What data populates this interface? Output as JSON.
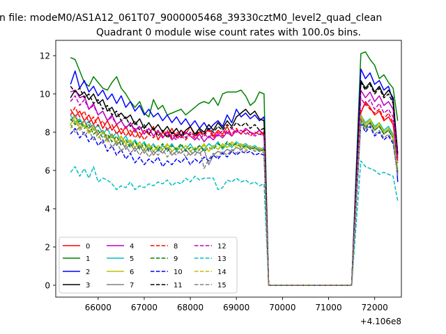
{
  "chart_data": {
    "type": "line",
    "suptitle": "n file: modeM0/AS1A12_061T07_9000005468_39330cztM0_level2_quad_clean",
    "title": "Quadrant 0 module wise count rates with 100.0s bins.",
    "xlabel": "",
    "ylabel": "",
    "x_offset_label": "+4.106e8",
    "xlim": [
      65080,
      72580
    ],
    "ylim": [
      -0.62,
      12.8
    ],
    "xticks": [
      66000,
      67000,
      68000,
      69000,
      70000,
      71000,
      72000
    ],
    "yticks": [
      0,
      2,
      4,
      6,
      8,
      10,
      12
    ],
    "grid": false,
    "legend": {
      "placement": "lower-left",
      "columns": 4
    },
    "segments": [
      [
        65400,
        69600
      ],
      [
        71700,
        72500
      ]
    ],
    "gap_start": 69700,
    "gap_end": 71500,
    "bin_size": 100,
    "series": [
      {
        "name": "0",
        "color": "#ff0000",
        "dash": "solid",
        "seg1": [
          9.2,
          8.8,
          9.1,
          8.6,
          8.9,
          8.4,
          8.8,
          8.2,
          8.6,
          8.1,
          8.4,
          7.9,
          8.3,
          7.8,
          8.2,
          7.7,
          8.1,
          7.9,
          8.3,
          7.6,
          8.0,
          7.8,
          8.2,
          7.7,
          8.1,
          7.9,
          8.3,
          7.8,
          8.0,
          7.9,
          8.2,
          7.8,
          8.1,
          7.9,
          8.3,
          7.8,
          8.1,
          7.9,
          8.2,
          8.0,
          7.9,
          8.1,
          7.8
        ],
        "seg2": [
          9.0,
          9.6,
          9.3,
          8.9,
          9.1,
          8.6,
          8.8,
          8.4,
          6.6
        ]
      },
      {
        "name": "1",
        "color": "#008000",
        "dash": "solid",
        "seg1": [
          11.9,
          11.8,
          11.2,
          10.6,
          10.4,
          10.9,
          10.6,
          10.3,
          10.2,
          10.6,
          10.9,
          10.3,
          10.0,
          9.6,
          9.3,
          9.6,
          9.0,
          8.8,
          9.7,
          9.2,
          9.4,
          8.9,
          9.0,
          9.1,
          9.2,
          8.9,
          9.1,
          9.3,
          9.5,
          9.6,
          9.5,
          9.8,
          9.4,
          10.0,
          10.1,
          10.1,
          10.1,
          10.2,
          9.9,
          9.4,
          9.6,
          10.1,
          10.0
        ],
        "seg2": [
          12.1,
          12.2,
          11.8,
          11.5,
          10.8,
          11.0,
          10.6,
          10.3,
          8.6
        ]
      },
      {
        "name": "2",
        "color": "#0000ff",
        "dash": "solid",
        "seg1": [
          10.5,
          11.2,
          10.3,
          10.7,
          10.1,
          10.4,
          9.9,
          10.2,
          9.7,
          10.0,
          9.5,
          9.9,
          9.3,
          9.6,
          9.1,
          9.4,
          8.9,
          9.2,
          8.8,
          9.0,
          8.6,
          8.9,
          8.5,
          8.8,
          8.4,
          8.7,
          8.3,
          8.6,
          8.2,
          8.5,
          8.1,
          8.4,
          8.6,
          8.3,
          8.9,
          8.5,
          9.2,
          8.8,
          9.0,
          8.7,
          8.9,
          8.6,
          8.8
        ],
        "seg2": [
          11.3,
          10.8,
          11.1,
          10.5,
          10.7,
          10.2,
          10.4,
          9.6,
          5.4
        ]
      },
      {
        "name": "3",
        "color": "#000000",
        "dash": "solid",
        "seg1": [
          9.8,
          10.2,
          9.9,
          10.1,
          9.7,
          10.0,
          9.5,
          9.7,
          9.1,
          9.3,
          8.8,
          9.0,
          8.7,
          8.9,
          8.4,
          8.7,
          8.2,
          8.5,
          8.1,
          8.4,
          8.0,
          8.3,
          7.9,
          8.2,
          7.8,
          8.1,
          8.3,
          7.9,
          8.2,
          8.0,
          8.4,
          8.1,
          8.5,
          8.2,
          8.6,
          8.3,
          8.8,
          9.0,
          9.2,
          8.9,
          9.1,
          8.7,
          8.6
        ],
        "seg2": [
          10.7,
          10.3,
          10.6,
          10.1,
          10.4,
          9.9,
          10.2,
          9.8,
          6.9
        ]
      },
      {
        "name": "4",
        "color": "#bf00bf",
        "dash": "solid",
        "seg1": [
          10.1,
          10.2,
          9.8,
          9.9,
          9.2,
          9.5,
          8.9,
          9.1,
          8.6,
          8.9,
          8.4,
          8.6,
          8.2,
          8.5,
          8.1,
          8.3,
          7.9,
          8.2,
          7.8,
          8.1,
          7.7,
          8.0,
          7.6,
          7.9,
          7.7,
          8.0,
          7.8,
          7.6,
          7.9,
          7.5,
          7.8,
          7.6,
          7.9,
          7.7,
          8.0,
          7.8,
          8.1,
          7.9,
          8.2,
          8.0,
          7.9,
          8.1,
          7.9
        ],
        "seg2": [
          10.2,
          9.8,
          10.1,
          9.6,
          9.9,
          9.4,
          9.6,
          9.2,
          6.7
        ]
      },
      {
        "name": "5",
        "color": "#00bfbf",
        "dash": "solid",
        "seg1": [
          8.9,
          8.5,
          8.7,
          8.3,
          8.6,
          8.1,
          8.4,
          7.9,
          8.2,
          7.7,
          8.0,
          7.5,
          7.8,
          7.3,
          7.6,
          7.2,
          7.5,
          7.1,
          7.4,
          7.0,
          7.3,
          7.1,
          7.4,
          7.0,
          7.3,
          7.1,
          7.4,
          7.0,
          7.3,
          7.1,
          7.4,
          7.2,
          7.5,
          7.1,
          7.4,
          7.2,
          7.5,
          7.3,
          7.4,
          7.2,
          7.3,
          7.1,
          7.2
        ],
        "seg2": [
          8.9,
          8.5,
          8.7,
          8.3,
          8.5,
          8.1,
          8.3,
          7.9,
          6.1
        ]
      },
      {
        "name": "6",
        "color": "#bfbf00",
        "dash": "solid",
        "seg1": [
          8.4,
          8.8,
          8.2,
          8.6,
          8.0,
          8.3,
          7.9,
          8.1,
          7.7,
          7.9,
          7.5,
          7.8,
          7.4,
          7.6,
          7.2,
          7.5,
          7.1,
          7.4,
          7.0,
          7.3,
          7.1,
          7.4,
          7.0,
          7.2,
          7.1,
          7.3,
          7.0,
          7.2,
          7.1,
          7.4,
          7.0,
          7.3,
          7.1,
          7.4,
          7.2,
          7.5,
          7.3,
          7.4,
          7.2,
          7.3,
          7.1,
          7.2,
          7.0
        ],
        "seg2": [
          8.8,
          8.4,
          8.6,
          8.2,
          8.4,
          8.0,
          8.2,
          7.8,
          6.0
        ]
      },
      {
        "name": "7",
        "color": "#808080",
        "dash": "solid",
        "seg1": [
          8.6,
          8.9,
          8.4,
          8.6,
          8.2,
          8.4,
          7.9,
          8.1,
          7.6,
          7.9,
          7.3,
          7.6,
          7.1,
          7.4,
          7.0,
          7.3,
          6.9,
          7.2,
          6.8,
          7.1,
          6.9,
          7.2,
          6.8,
          7.0,
          6.9,
          7.1,
          6.8,
          7.0,
          6.9,
          7.1,
          6.3,
          6.8,
          7.0,
          6.9,
          7.1,
          7.0,
          7.2,
          7.1,
          7.3,
          7.1,
          7.2,
          7.0,
          7.1
        ],
        "seg2": [
          8.7,
          8.3,
          8.5,
          8.1,
          8.3,
          7.9,
          8.1,
          7.7,
          5.9
        ]
      },
      {
        "name": "8",
        "color": "#ff0000",
        "dash": "dashed",
        "seg1": [
          8.9,
          9.3,
          8.8,
          9.1,
          8.5,
          8.8,
          8.3,
          8.6,
          8.1,
          8.4,
          7.9,
          8.2,
          7.8,
          8.1,
          7.7,
          8.0,
          7.6,
          7.9,
          7.7,
          8.0,
          7.8,
          8.1,
          7.7,
          8.0,
          7.8,
          7.6,
          7.9,
          7.7,
          8.0,
          7.8,
          8.1,
          7.7,
          8.0,
          7.8,
          8.1,
          7.9,
          8.2,
          7.9,
          8.1,
          7.8,
          8.0,
          7.9,
          8.0
        ],
        "seg2": [
          9.1,
          9.5,
          9.2,
          9.0,
          9.2,
          8.7,
          9.0,
          8.5,
          6.4
        ]
      },
      {
        "name": "9",
        "color": "#008000",
        "dash": "dashed",
        "seg1": [
          8.7,
          8.4,
          8.6,
          8.2,
          8.4,
          7.9,
          8.1,
          7.7,
          7.9,
          7.5,
          7.8,
          7.3,
          7.6,
          7.2,
          7.5,
          7.1,
          7.4,
          7.0,
          7.3,
          7.1,
          7.4,
          7.0,
          7.3,
          7.1,
          7.4,
          7.0,
          7.2,
          7.1,
          7.3,
          7.0,
          7.2,
          7.1,
          7.4,
          7.2,
          7.5,
          7.3,
          7.4,
          7.2,
          7.3,
          7.1,
          7.2,
          7.0,
          7.1
        ],
        "seg2": [
          8.6,
          8.2,
          8.5,
          8.1,
          8.3,
          7.9,
          8.1,
          7.7,
          5.9
        ]
      },
      {
        "name": "10",
        "color": "#0000ff",
        "dash": "dashed",
        "seg1": [
          7.9,
          8.2,
          7.7,
          8.0,
          7.5,
          7.8,
          7.3,
          7.6,
          7.0,
          7.3,
          6.8,
          7.1,
          6.6,
          6.9,
          6.4,
          6.7,
          6.3,
          6.6,
          6.4,
          6.7,
          6.2,
          6.5,
          6.3,
          6.6,
          6.4,
          6.7,
          6.3,
          6.6,
          6.4,
          6.7,
          6.5,
          6.8,
          6.6,
          6.9,
          6.7,
          7.0,
          6.8,
          7.0,
          6.9,
          7.0,
          6.8,
          6.9,
          6.8
        ],
        "seg2": [
          8.5,
          8.0,
          8.3,
          7.8,
          8.0,
          7.6,
          7.8,
          7.4,
          5.8
        ]
      },
      {
        "name": "11",
        "color": "#000000",
        "dash": "dashed",
        "seg1": [
          10.4,
          10.1,
          10.3,
          9.8,
          10.0,
          9.5,
          9.7,
          9.2,
          9.4,
          8.9,
          9.1,
          8.6,
          8.8,
          8.3,
          8.6,
          8.1,
          8.4,
          7.9,
          8.2,
          7.8,
          8.1,
          7.7,
          8.0,
          7.8,
          8.1,
          7.7,
          8.0,
          7.8,
          8.1,
          7.9,
          8.2,
          8.0,
          8.3,
          8.1,
          8.4,
          8.2,
          8.5,
          8.3,
          8.5,
          8.2,
          8.4,
          8.1,
          8.2
        ],
        "seg2": [
          10.6,
          10.2,
          10.5,
          10.0,
          10.3,
          9.8,
          10.0,
          9.5,
          6.8
        ]
      },
      {
        "name": "12",
        "color": "#bf00bf",
        "dash": "dashed",
        "seg1": [
          9.6,
          9.9,
          9.4,
          9.7,
          9.2,
          9.4,
          8.9,
          9.1,
          8.6,
          8.8,
          8.4,
          8.6,
          8.2,
          8.5,
          8.0,
          8.3,
          7.9,
          8.2,
          7.8,
          8.1,
          7.7,
          8.0,
          7.8,
          7.6,
          7.9,
          7.7,
          8.0,
          7.8,
          7.6,
          7.9,
          7.7,
          8.0,
          7.8,
          8.1,
          7.9,
          8.2,
          8.0,
          8.1,
          7.9,
          8.0,
          7.8,
          7.9,
          7.8
        ],
        "seg2": [
          9.8,
          9.4,
          9.7,
          9.2,
          9.5,
          9.0,
          9.2,
          8.8,
          6.5
        ]
      },
      {
        "name": "13",
        "color": "#00bfbf",
        "dash": "dashed",
        "seg1": [
          5.9,
          6.2,
          5.7,
          6.1,
          5.6,
          6.2,
          5.4,
          5.6,
          5.5,
          5.3,
          5.0,
          5.2,
          5.1,
          5.4,
          5.0,
          5.2,
          5.1,
          5.3,
          5.2,
          5.4,
          5.3,
          5.5,
          5.2,
          5.4,
          5.3,
          5.6,
          5.4,
          5.7,
          5.5,
          5.6,
          5.6,
          5.6,
          5.0,
          5.1,
          5.5,
          5.4,
          5.6,
          5.4,
          5.5,
          5.3,
          5.4,
          5.2,
          5.3
        ],
        "seg2": [
          6.5,
          6.2,
          6.1,
          6.0,
          5.8,
          5.9,
          5.8,
          5.7,
          4.4
        ]
      },
      {
        "name": "14",
        "color": "#bfbf00",
        "dash": "dashed",
        "seg1": [
          8.2,
          8.6,
          8.1,
          8.4,
          7.9,
          8.2,
          7.7,
          8.0,
          7.5,
          7.8,
          7.4,
          7.7,
          7.3,
          7.5,
          7.2,
          7.4,
          7.1,
          7.3,
          7.0,
          7.2,
          7.1,
          7.3,
          7.0,
          7.2,
          7.1,
          7.3,
          7.0,
          7.2,
          7.1,
          7.3,
          7.0,
          7.3,
          7.1,
          7.3,
          7.2,
          7.4,
          7.2,
          7.3,
          7.1,
          7.2,
          7.0,
          7.1,
          7.0
        ],
        "seg2": [
          8.9,
          8.4,
          8.7,
          8.2,
          8.5,
          8.0,
          8.2,
          7.8,
          6.0
        ]
      },
      {
        "name": "15",
        "color": "#808080",
        "dash": "dashed",
        "seg1": [
          8.4,
          8.0,
          8.3,
          7.8,
          8.1,
          7.6,
          7.9,
          7.4,
          7.7,
          7.2,
          7.5,
          7.0,
          7.3,
          6.9,
          7.2,
          6.8,
          7.1,
          6.7,
          7.0,
          6.8,
          7.1,
          6.7,
          7.0,
          6.8,
          7.1,
          6.7,
          7.0,
          6.8,
          7.1,
          6.1,
          6.6,
          6.9,
          6.7,
          7.0,
          6.8,
          7.1,
          6.9,
          7.1,
          7.0,
          7.2,
          7.0,
          7.1,
          6.9
        ],
        "seg2": [
          8.5,
          8.1,
          8.4,
          7.9,
          8.1,
          7.7,
          7.9,
          7.5,
          5.7
        ]
      }
    ]
  }
}
